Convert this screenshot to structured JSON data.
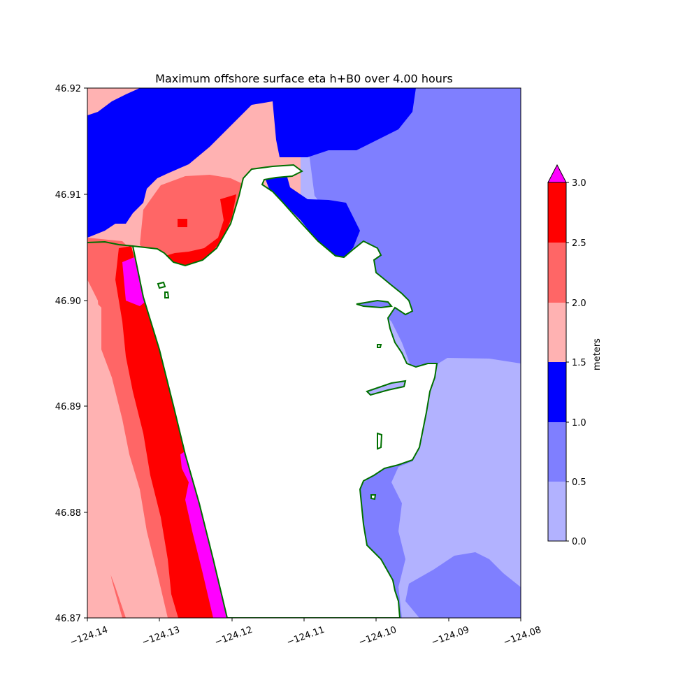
{
  "title": "Maximum offshore surface eta h+B0 over 4.00 hours",
  "x_ticks": [
    "−124.14",
    "−124.13",
    "−124.12",
    "−124.11",
    "−124.10",
    "−124.09",
    "−124.08"
  ],
  "y_ticks": [
    "46.92",
    "46.91",
    "46.90",
    "46.89",
    "46.88",
    "46.87"
  ],
  "colorbar": {
    "label": "meters",
    "ticks": [
      "3.0",
      "2.5",
      "2.0",
      "1.5",
      "1.0",
      "0.5",
      "0.0"
    ],
    "bands": [
      {
        "range": [
          2.5,
          3.0
        ],
        "color": "#ff0000"
      },
      {
        "range": [
          2.0,
          2.5
        ],
        "color": "#ff6666"
      },
      {
        "range": [
          1.5,
          2.0
        ],
        "color": "#ffb2b2"
      },
      {
        "range": [
          1.0,
          1.5
        ],
        "color": "#0000ff"
      },
      {
        "range": [
          0.5,
          1.0
        ],
        "color": "#7f7fff"
      },
      {
        "range": [
          0.0,
          0.5
        ],
        "color": "#b2b2ff"
      }
    ],
    "extend_color": "#ff00ff"
  },
  "map": {
    "lon_range": [
      -124.14,
      -124.08
    ],
    "lat_range": [
      46.87,
      46.92
    ],
    "coastline_color": "#007000",
    "land_color": "#ffffff"
  }
}
